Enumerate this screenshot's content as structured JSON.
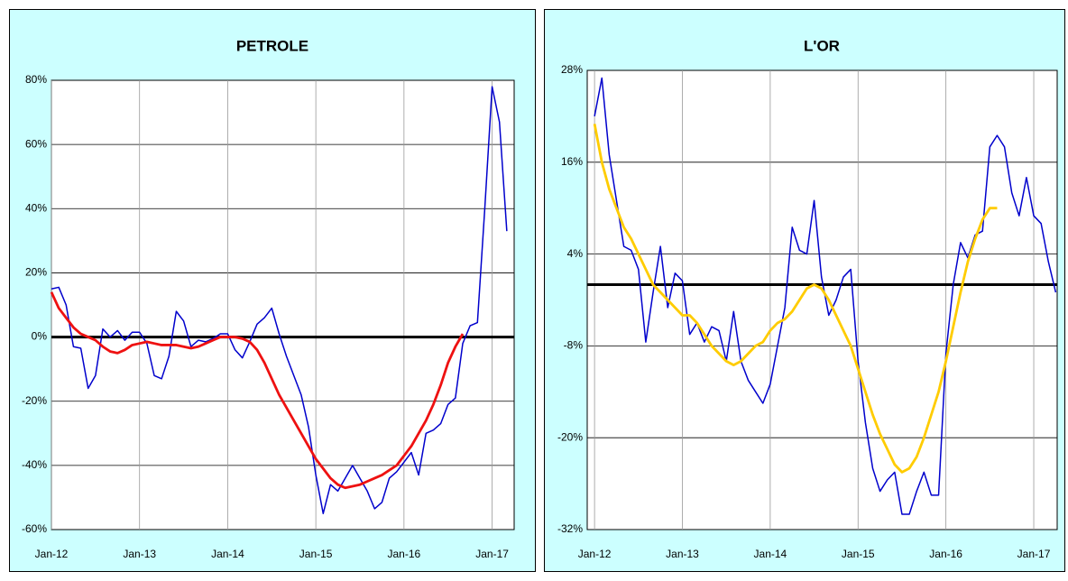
{
  "chart_data": [
    {
      "type": "line",
      "title": "PETROLE",
      "x": [
        0,
        1,
        2,
        3,
        4,
        5,
        6,
        7,
        8,
        9,
        10,
        11,
        12,
        13,
        14,
        15,
        16,
        17,
        18,
        19,
        20,
        21,
        22,
        23,
        24,
        25,
        26,
        27,
        28,
        29,
        30,
        31,
        32,
        33,
        34,
        35,
        36,
        37,
        38,
        39,
        40,
        41,
        42,
        43,
        44,
        45,
        46,
        47,
        48,
        49,
        50,
        51,
        52,
        53,
        54,
        55,
        56,
        57,
        58,
        59,
        60,
        61,
        62
      ],
      "series": [
        {
          "color": "#0000cc",
          "values": [
            15,
            15.5,
            10,
            -3,
            -3.5,
            -16,
            -12,
            2.5,
            0,
            2,
            -1,
            1.5,
            1.5,
            -2,
            -12,
            -13,
            -6,
            8,
            5,
            -3,
            -1,
            -1.5,
            -0.5,
            1,
            1,
            -4,
            -6.5,
            -1.5,
            4,
            6,
            9,
            1,
            -6,
            -12,
            -18,
            -28,
            -43,
            -55,
            -46,
            -48,
            -44,
            -40,
            -44,
            -48,
            -53.5,
            -51.5,
            -44,
            -42,
            -39,
            -36,
            -43,
            -30,
            -29,
            -27,
            -21,
            -19,
            -2,
            3.5,
            4.5,
            40,
            78,
            67,
            33
          ]
        },
        {
          "color": "#ee1111",
          "values": [
            14,
            9,
            6,
            3,
            1,
            0,
            -1,
            -3,
            -4.5,
            -5,
            -4,
            -2.5,
            -2,
            -1.5,
            -2,
            -2.5,
            -2.5,
            -2.5,
            -3,
            -3.5,
            -3,
            -2,
            -1,
            0,
            0,
            0,
            -0.5,
            -1.5,
            -4,
            -8,
            -13,
            -18,
            -22,
            -26,
            -30,
            -34,
            -38,
            -41,
            -44,
            -46,
            -47,
            -46.5,
            -46,
            -45,
            -44,
            -43,
            -41.5,
            -40,
            -37,
            -34,
            -30,
            -26,
            -21,
            -15,
            -8,
            -3,
            1,
            null,
            null,
            null,
            null,
            null,
            null
          ]
        }
      ],
      "xlim": [
        0,
        63
      ],
      "xticks": [
        {
          "value": 0,
          "label": "Jan-12"
        },
        {
          "value": 12,
          "label": "Jan-13"
        },
        {
          "value": 24,
          "label": "Jan-14"
        },
        {
          "value": 36,
          "label": "Jan-15"
        },
        {
          "value": 48,
          "label": "Jan-16"
        },
        {
          "value": 60,
          "label": "Jan-17"
        }
      ],
      "ylim": [
        -60,
        80
      ],
      "yticks": [
        {
          "value": 80,
          "label": "80%"
        },
        {
          "value": 60,
          "label": "60%"
        },
        {
          "value": 40,
          "label": "40%"
        },
        {
          "value": 20,
          "label": "20%"
        },
        {
          "value": 0,
          "label": "0%"
        },
        {
          "value": -20,
          "label": "-20%"
        },
        {
          "value": -40,
          "label": "-40%"
        },
        {
          "value": -60,
          "label": "-60%"
        }
      ],
      "grid": true
    },
    {
      "type": "line",
      "title": "L'OR",
      "x": [
        0,
        1,
        2,
        3,
        4,
        5,
        6,
        7,
        8,
        9,
        10,
        11,
        12,
        13,
        14,
        15,
        16,
        17,
        18,
        19,
        20,
        21,
        22,
        23,
        24,
        25,
        26,
        27,
        28,
        29,
        30,
        31,
        32,
        33,
        34,
        35,
        36,
        37,
        38,
        39,
        40,
        41,
        42,
        43,
        44,
        45,
        46,
        47,
        48,
        49,
        50,
        51,
        52,
        53,
        54,
        55,
        56,
        57,
        58,
        59,
        60,
        61,
        62,
        63
      ],
      "series": [
        {
          "color": "#0000cc",
          "values": [
            22,
            27,
            17,
            11,
            5,
            4.5,
            2,
            -7.5,
            -1,
            5,
            -3,
            1.5,
            0.5,
            -6.5,
            -5,
            -7.5,
            -5.5,
            -6,
            -10,
            -3.5,
            -10,
            -12.5,
            -14,
            -15.5,
            -13,
            -8,
            -3,
            7.5,
            4.5,
            4,
            11,
            1,
            -4,
            -2,
            1,
            2,
            -10,
            -18,
            -24,
            -27,
            -25.5,
            -24.5,
            -30,
            -30,
            -27,
            -24.5,
            -27.5,
            -27.5,
            -9,
            0,
            5.5,
            3.5,
            6.5,
            7,
            18,
            19.5,
            18,
            12,
            9,
            14,
            9,
            8,
            3,
            -1
          ]
        },
        {
          "color": "#ffcc00",
          "values": [
            21,
            16,
            12.5,
            10,
            7.5,
            6,
            4,
            2,
            0,
            -1,
            -2,
            -3,
            -4,
            -4,
            -5,
            -6.5,
            -8,
            -9,
            -10,
            -10.5,
            -10,
            -9,
            -8,
            -7.5,
            -6,
            -5,
            -4.5,
            -3.5,
            -2,
            -0.5,
            0,
            -0.5,
            -2,
            -4,
            -6,
            -8,
            -11,
            -14,
            -17,
            -19.5,
            -21.5,
            -23.5,
            -24.5,
            -24,
            -22.5,
            -20,
            -17,
            -14,
            -10,
            -5.5,
            -1,
            3,
            6,
            8.5,
            10,
            10,
            null,
            null,
            null,
            null,
            null,
            null,
            null,
            null
          ]
        }
      ],
      "xlim": [
        -1,
        63.2
      ],
      "xticks": [
        {
          "value": 0,
          "label": "Jan-12"
        },
        {
          "value": 12,
          "label": "Jan-13"
        },
        {
          "value": 24,
          "label": "Jan-14"
        },
        {
          "value": 36,
          "label": "Jan-15"
        },
        {
          "value": 48,
          "label": "Jan-16"
        },
        {
          "value": 60,
          "label": "Jan-17"
        }
      ],
      "ylim": [
        -32,
        28
      ],
      "yticks": [
        {
          "value": 28,
          "label": "28%"
        },
        {
          "value": 16,
          "label": "16%"
        },
        {
          "value": 4,
          "label": "4%"
        },
        {
          "value": -8,
          "label": "-8%"
        },
        {
          "value": -20,
          "label": "-20%"
        },
        {
          "value": -32,
          "label": "-32%"
        }
      ],
      "grid": true
    }
  ]
}
